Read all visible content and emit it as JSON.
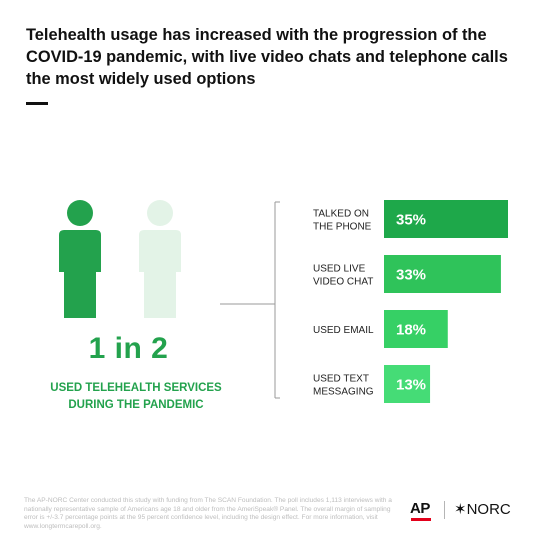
{
  "title": "Telehealth usage has increased with the progression of the COVID-19 pandemic, with live video chats and telephone calls the most widely used options",
  "stat": {
    "ratio": "1 in 2",
    "label_line1": "USED TELEHEALTH SERVICES",
    "label_line2": "DURING THE PANDEMIC"
  },
  "colors": {
    "accent": "#23a24d",
    "person_light": "#e3f3e7",
    "bars": [
      "#1ea84a",
      "#2fc35a",
      "#36d065",
      "#45dc76"
    ]
  },
  "chart_data": {
    "type": "bar",
    "orientation": "horizontal",
    "categories": [
      [
        "TALKED ON",
        "THE PHONE"
      ],
      [
        "USED LIVE",
        "VIDEO CHAT"
      ],
      [
        "USED EMAIL"
      ],
      [
        "USED TEXT",
        "MESSAGING"
      ]
    ],
    "values": [
      35,
      33,
      18,
      13
    ],
    "value_labels": [
      "35%",
      "33%",
      "18%",
      "13%"
    ],
    "xlim": [
      0,
      35
    ],
    "grid": false,
    "legend": "none"
  },
  "footnote": "The AP-NORC Center conducted this study with funding from The SCAN Foundation. The poll includes 1,113 interviews with a nationally representative sample of Americans age 18 and older from the AmeriSpeak® Panel. The overall margin of sampling error is +/-3.7 percentage points at the 95 percent confidence level, including the design effect. For more information, visit www.longtermcarepoll.org.",
  "logos": {
    "ap": "AP",
    "norc": "✶NORC"
  }
}
